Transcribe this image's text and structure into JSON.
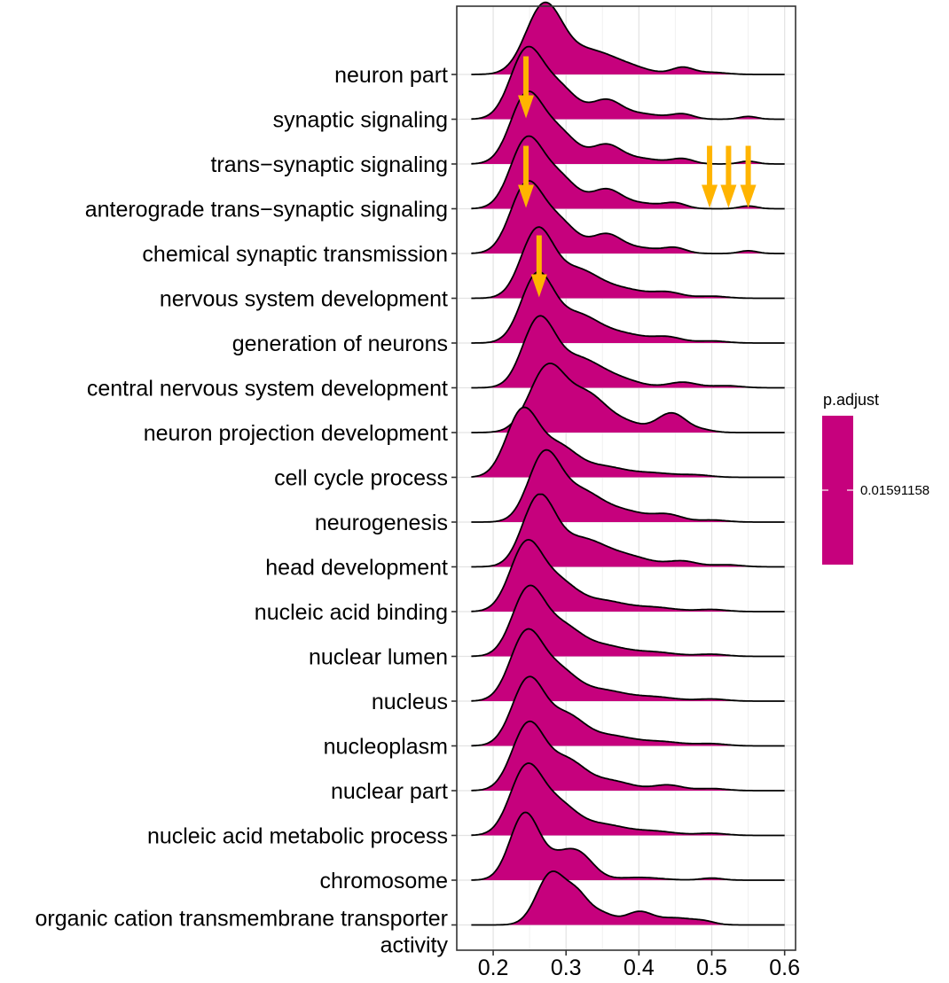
{
  "chart_data": {
    "type": "ridgeline",
    "title": "",
    "xlabel": "",
    "ylabel": "",
    "xlim": [
      0.15,
      0.615
    ],
    "x_ticks": [
      0.2,
      0.3,
      0.4,
      0.5,
      0.6
    ],
    "x_tick_labels": [
      "0.2",
      "0.3",
      "0.4",
      "0.5",
      "0.6"
    ],
    "fill_color": "#C6017D",
    "arrow_color": "#FFB400",
    "categories": [
      "neuron part",
      "synaptic signaling",
      "trans−synaptic signaling",
      "anterograde trans−synaptic signaling",
      "chemical synaptic transmission",
      "nervous system development",
      "generation of neurons",
      "central nervous system development",
      "neuron projection development",
      "cell cycle process",
      "neurogenesis",
      "head development",
      "nucleic acid binding",
      "nuclear lumen",
      "nucleus",
      "nucleoplasm",
      "nuclear part",
      "nucleic acid metabolic process",
      "chromosome",
      "organic cation transmembrane transporter activity"
    ],
    "label_lines": [
      [
        "neuron part"
      ],
      [
        "synaptic signaling"
      ],
      [
        "trans−synaptic signaling"
      ],
      [
        "anterograde trans−synaptic signaling"
      ],
      [
        "chemical synaptic transmission"
      ],
      [
        "nervous system development"
      ],
      [
        "generation of neurons"
      ],
      [
        "central nervous system development"
      ],
      [
        "neuron projection development"
      ],
      [
        "cell cycle process"
      ],
      [
        "neurogenesis"
      ],
      [
        "head development"
      ],
      [
        "nucleic acid binding"
      ],
      [
        "nuclear lumen"
      ],
      [
        "nucleus"
      ],
      [
        "nucleoplasm"
      ],
      [
        "nuclear part"
      ],
      [
        "nucleic acid metabolic process"
      ],
      [
        "chromosome"
      ],
      [
        "organic cation transmembrane transporter",
        "activity"
      ]
    ],
    "density_x_range": [
      0.17,
      0.6
    ],
    "series": [
      {
        "name": "neuron part",
        "peaks": [
          [
            0.27,
            1.0,
            0.025
          ],
          [
            0.33,
            0.3,
            0.03
          ],
          [
            0.38,
            0.12,
            0.03
          ],
          [
            0.46,
            0.1,
            0.015
          ],
          [
            0.5,
            0.03,
            0.02
          ]
        ]
      },
      {
        "name": "synaptic signaling",
        "peaks": [
          [
            0.245,
            0.95,
            0.022
          ],
          [
            0.29,
            0.45,
            0.025
          ],
          [
            0.355,
            0.25,
            0.02
          ],
          [
            0.4,
            0.08,
            0.03
          ],
          [
            0.46,
            0.07,
            0.015
          ],
          [
            0.55,
            0.04,
            0.012
          ]
        ]
      },
      {
        "name": "trans−synaptic signaling",
        "peaks": [
          [
            0.245,
            0.95,
            0.022
          ],
          [
            0.29,
            0.45,
            0.025
          ],
          [
            0.355,
            0.25,
            0.02
          ],
          [
            0.4,
            0.08,
            0.03
          ],
          [
            0.46,
            0.07,
            0.015
          ],
          [
            0.55,
            0.04,
            0.012
          ]
        ]
      },
      {
        "name": "anterograde trans−synaptic signaling",
        "peaks": [
          [
            0.245,
            0.95,
            0.022
          ],
          [
            0.29,
            0.45,
            0.025
          ],
          [
            0.355,
            0.25,
            0.02
          ],
          [
            0.4,
            0.08,
            0.03
          ],
          [
            0.45,
            0.07,
            0.015
          ],
          [
            0.55,
            0.04,
            0.012
          ]
        ]
      },
      {
        "name": "chemical synaptic transmission",
        "peaks": [
          [
            0.245,
            0.95,
            0.022
          ],
          [
            0.29,
            0.45,
            0.025
          ],
          [
            0.355,
            0.25,
            0.02
          ],
          [
            0.4,
            0.08,
            0.03
          ],
          [
            0.45,
            0.07,
            0.015
          ],
          [
            0.55,
            0.04,
            0.012
          ]
        ]
      },
      {
        "name": "nervous system development",
        "peaks": [
          [
            0.26,
            0.95,
            0.022
          ],
          [
            0.315,
            0.4,
            0.03
          ],
          [
            0.38,
            0.12,
            0.03
          ],
          [
            0.44,
            0.08,
            0.02
          ],
          [
            0.5,
            0.03,
            0.02
          ]
        ]
      },
      {
        "name": "generation of neurons",
        "peaks": [
          [
            0.26,
            0.95,
            0.022
          ],
          [
            0.315,
            0.4,
            0.03
          ],
          [
            0.38,
            0.12,
            0.03
          ],
          [
            0.44,
            0.08,
            0.02
          ],
          [
            0.5,
            0.03,
            0.02
          ]
        ]
      },
      {
        "name": "central nervous system development",
        "peaks": [
          [
            0.262,
            0.95,
            0.022
          ],
          [
            0.315,
            0.4,
            0.03
          ],
          [
            0.37,
            0.12,
            0.03
          ],
          [
            0.46,
            0.08,
            0.02
          ],
          [
            0.52,
            0.03,
            0.02
          ]
        ]
      },
      {
        "name": "neuron projection development",
        "peaks": [
          [
            0.275,
            0.95,
            0.025
          ],
          [
            0.33,
            0.5,
            0.025
          ],
          [
            0.38,
            0.14,
            0.025
          ],
          [
            0.445,
            0.28,
            0.02
          ],
          [
            0.49,
            0.03,
            0.015
          ]
        ]
      },
      {
        "name": "cell cycle process",
        "peaks": [
          [
            0.24,
            0.95,
            0.022
          ],
          [
            0.29,
            0.42,
            0.025
          ],
          [
            0.35,
            0.15,
            0.03
          ],
          [
            0.42,
            0.06,
            0.03
          ],
          [
            0.48,
            0.03,
            0.02
          ]
        ]
      },
      {
        "name": "neurogenesis",
        "peaks": [
          [
            0.27,
            0.95,
            0.022
          ],
          [
            0.32,
            0.42,
            0.028
          ],
          [
            0.38,
            0.15,
            0.03
          ],
          [
            0.44,
            0.1,
            0.02
          ],
          [
            0.5,
            0.03,
            0.02
          ]
        ]
      },
      {
        "name": "head development",
        "peaks": [
          [
            0.262,
            0.95,
            0.022
          ],
          [
            0.32,
            0.4,
            0.035
          ],
          [
            0.39,
            0.12,
            0.03
          ],
          [
            0.46,
            0.08,
            0.02
          ],
          [
            0.52,
            0.03,
            0.02
          ]
        ]
      },
      {
        "name": "nucleic acid binding",
        "peaks": [
          [
            0.245,
            0.95,
            0.022
          ],
          [
            0.29,
            0.4,
            0.025
          ],
          [
            0.35,
            0.15,
            0.03
          ],
          [
            0.42,
            0.06,
            0.03
          ],
          [
            0.5,
            0.03,
            0.02
          ]
        ]
      },
      {
        "name": "nuclear lumen",
        "peaks": [
          [
            0.248,
            0.95,
            0.022
          ],
          [
            0.295,
            0.4,
            0.025
          ],
          [
            0.35,
            0.15,
            0.03
          ],
          [
            0.42,
            0.06,
            0.03
          ],
          [
            0.5,
            0.03,
            0.02
          ]
        ]
      },
      {
        "name": "nucleus",
        "peaks": [
          [
            0.245,
            0.95,
            0.022
          ],
          [
            0.29,
            0.42,
            0.025
          ],
          [
            0.35,
            0.15,
            0.03
          ],
          [
            0.42,
            0.06,
            0.03
          ],
          [
            0.5,
            0.03,
            0.02
          ]
        ]
      },
      {
        "name": "nucleoplasm",
        "peaks": [
          [
            0.248,
            0.95,
            0.022
          ],
          [
            0.3,
            0.42,
            0.025
          ],
          [
            0.36,
            0.14,
            0.03
          ],
          [
            0.43,
            0.06,
            0.03
          ],
          [
            0.5,
            0.03,
            0.02
          ]
        ]
      },
      {
        "name": "nuclear part",
        "peaks": [
          [
            0.248,
            0.95,
            0.022
          ],
          [
            0.3,
            0.42,
            0.025
          ],
          [
            0.36,
            0.14,
            0.03
          ],
          [
            0.44,
            0.08,
            0.02
          ],
          [
            0.5,
            0.03,
            0.02
          ]
        ]
      },
      {
        "name": "nucleic acid metabolic process",
        "peaks": [
          [
            0.245,
            0.95,
            0.022
          ],
          [
            0.29,
            0.42,
            0.025
          ],
          [
            0.35,
            0.15,
            0.03
          ],
          [
            0.42,
            0.06,
            0.03
          ],
          [
            0.5,
            0.03,
            0.02
          ]
        ]
      },
      {
        "name": "chromosome",
        "peaks": [
          [
            0.243,
            0.95,
            0.02
          ],
          [
            0.29,
            0.28,
            0.022
          ],
          [
            0.32,
            0.3,
            0.02
          ],
          [
            0.4,
            0.04,
            0.03
          ],
          [
            0.5,
            0.03,
            0.015
          ]
        ]
      },
      {
        "name": "organic cation transmembrane transporter activity",
        "peaks": [
          [
            0.28,
            0.75,
            0.02
          ],
          [
            0.315,
            0.32,
            0.015
          ],
          [
            0.345,
            0.18,
            0.02
          ],
          [
            0.4,
            0.18,
            0.018
          ],
          [
            0.45,
            0.1,
            0.025
          ],
          [
            0.49,
            0.04,
            0.015
          ]
        ]
      }
    ],
    "annotations": [
      {
        "type": "arrow",
        "row": "synaptic signaling",
        "x": 0.245
      },
      {
        "type": "arrow",
        "row": "anterograde trans−synaptic signaling",
        "x": 0.245
      },
      {
        "type": "arrow",
        "row": "anterograde trans−synaptic signaling",
        "x": 0.497
      },
      {
        "type": "arrow",
        "row": "anterograde trans−synaptic signaling",
        "x": 0.523
      },
      {
        "type": "arrow",
        "row": "anterograde trans−synaptic signaling",
        "x": 0.55
      },
      {
        "type": "arrow",
        "row": "nervous system development",
        "x": 0.263
      }
    ],
    "legend": {
      "title": "p.adjust",
      "placement": "right",
      "ticks": [
        0.01591158
      ],
      "tick_labels": [
        "0.01591158"
      ],
      "color": "#C6017D"
    }
  }
}
